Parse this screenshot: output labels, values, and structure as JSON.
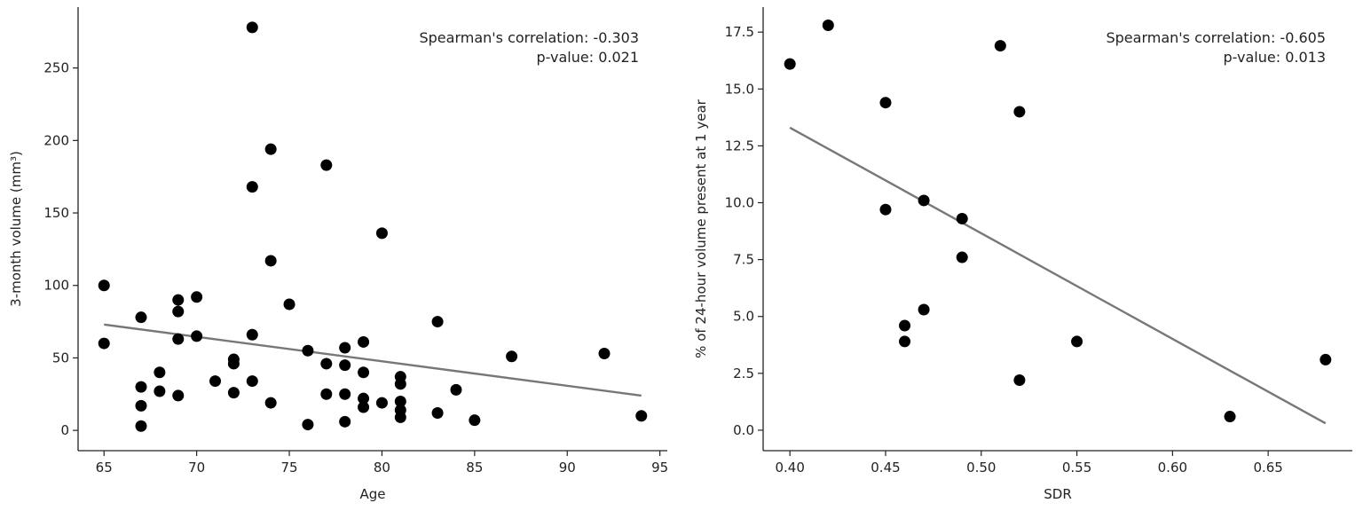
{
  "chart_data": [
    {
      "type": "scatter",
      "xlabel": "Age",
      "ylabel": "3-month volume (mm³)",
      "xlim": [
        63.6,
        95.4
      ],
      "ylim": [
        -14,
        292
      ],
      "xticks": [
        65,
        70,
        75,
        80,
        85,
        90,
        95
      ],
      "yticks": [
        0,
        50,
        100,
        150,
        200,
        250
      ],
      "annotation": [
        "Spearman's correlation: -0.303",
        "p-value: 0.021"
      ],
      "grid": false,
      "points": [
        {
          "x": 65,
          "y": 100
        },
        {
          "x": 65,
          "y": 60
        },
        {
          "x": 67,
          "y": 78
        },
        {
          "x": 67,
          "y": 30
        },
        {
          "x": 67,
          "y": 17
        },
        {
          "x": 67,
          "y": 3
        },
        {
          "x": 68,
          "y": 40
        },
        {
          "x": 68,
          "y": 27
        },
        {
          "x": 69,
          "y": 90
        },
        {
          "x": 69,
          "y": 82
        },
        {
          "x": 69,
          "y": 63
        },
        {
          "x": 69,
          "y": 24
        },
        {
          "x": 70,
          "y": 92
        },
        {
          "x": 70,
          "y": 65
        },
        {
          "x": 71,
          "y": 34
        },
        {
          "x": 72,
          "y": 49
        },
        {
          "x": 72,
          "y": 46
        },
        {
          "x": 72,
          "y": 26
        },
        {
          "x": 73,
          "y": 278
        },
        {
          "x": 73,
          "y": 168
        },
        {
          "x": 73,
          "y": 66
        },
        {
          "x": 73,
          "y": 34
        },
        {
          "x": 74,
          "y": 194
        },
        {
          "x": 74,
          "y": 117
        },
        {
          "x": 74,
          "y": 19
        },
        {
          "x": 75,
          "y": 87
        },
        {
          "x": 76,
          "y": 55
        },
        {
          "x": 76,
          "y": 4
        },
        {
          "x": 77,
          "y": 183
        },
        {
          "x": 77,
          "y": 46
        },
        {
          "x": 77,
          "y": 25
        },
        {
          "x": 78,
          "y": 57
        },
        {
          "x": 78,
          "y": 45
        },
        {
          "x": 78,
          "y": 25
        },
        {
          "x": 78,
          "y": 6
        },
        {
          "x": 79,
          "y": 61
        },
        {
          "x": 79,
          "y": 40
        },
        {
          "x": 79,
          "y": 22
        },
        {
          "x": 79,
          "y": 16
        },
        {
          "x": 80,
          "y": 136
        },
        {
          "x": 80,
          "y": 19
        },
        {
          "x": 81,
          "y": 37
        },
        {
          "x": 81,
          "y": 32
        },
        {
          "x": 81,
          "y": 20
        },
        {
          "x": 81,
          "y": 14
        },
        {
          "x": 81,
          "y": 9
        },
        {
          "x": 83,
          "y": 75
        },
        {
          "x": 83,
          "y": 12
        },
        {
          "x": 84,
          "y": 28
        },
        {
          "x": 85,
          "y": 7
        },
        {
          "x": 87,
          "y": 51
        },
        {
          "x": 92,
          "y": 53
        },
        {
          "x": 94,
          "y": 10
        }
      ],
      "trendline": {
        "x": [
          65,
          94
        ],
        "y": [
          73,
          24
        ]
      }
    },
    {
      "type": "scatter",
      "xlabel": "SDR",
      "ylabel": "% of 24-hour volume present at 1 year",
      "xlim": [
        0.386,
        0.694
      ],
      "ylim": [
        -0.9,
        18.6
      ],
      "xticks": [
        "0.40",
        "0.45",
        "0.50",
        "0.55",
        "0.60",
        "0.65"
      ],
      "yticks": [
        "0.0",
        "2.5",
        "5.0",
        "7.5",
        "10.0",
        "12.5",
        "15.0",
        "17.5"
      ],
      "annotation": [
        "Spearman's correlation: -0.605",
        "p-value: 0.013"
      ],
      "grid": false,
      "points": [
        {
          "x": 0.4,
          "y": 16.1
        },
        {
          "x": 0.42,
          "y": 17.8
        },
        {
          "x": 0.45,
          "y": 14.4
        },
        {
          "x": 0.45,
          "y": 9.7
        },
        {
          "x": 0.46,
          "y": 4.6
        },
        {
          "x": 0.46,
          "y": 3.9
        },
        {
          "x": 0.47,
          "y": 10.1
        },
        {
          "x": 0.47,
          "y": 5.3
        },
        {
          "x": 0.49,
          "y": 9.3
        },
        {
          "x": 0.49,
          "y": 7.6
        },
        {
          "x": 0.51,
          "y": 16.9
        },
        {
          "x": 0.52,
          "y": 14.0
        },
        {
          "x": 0.52,
          "y": 2.2
        },
        {
          "x": 0.55,
          "y": 3.9
        },
        {
          "x": 0.63,
          "y": 0.6
        },
        {
          "x": 0.68,
          "y": 3.1
        }
      ],
      "trendline": {
        "x": [
          0.4,
          0.68
        ],
        "y": [
          13.3,
          0.3
        ]
      }
    }
  ]
}
